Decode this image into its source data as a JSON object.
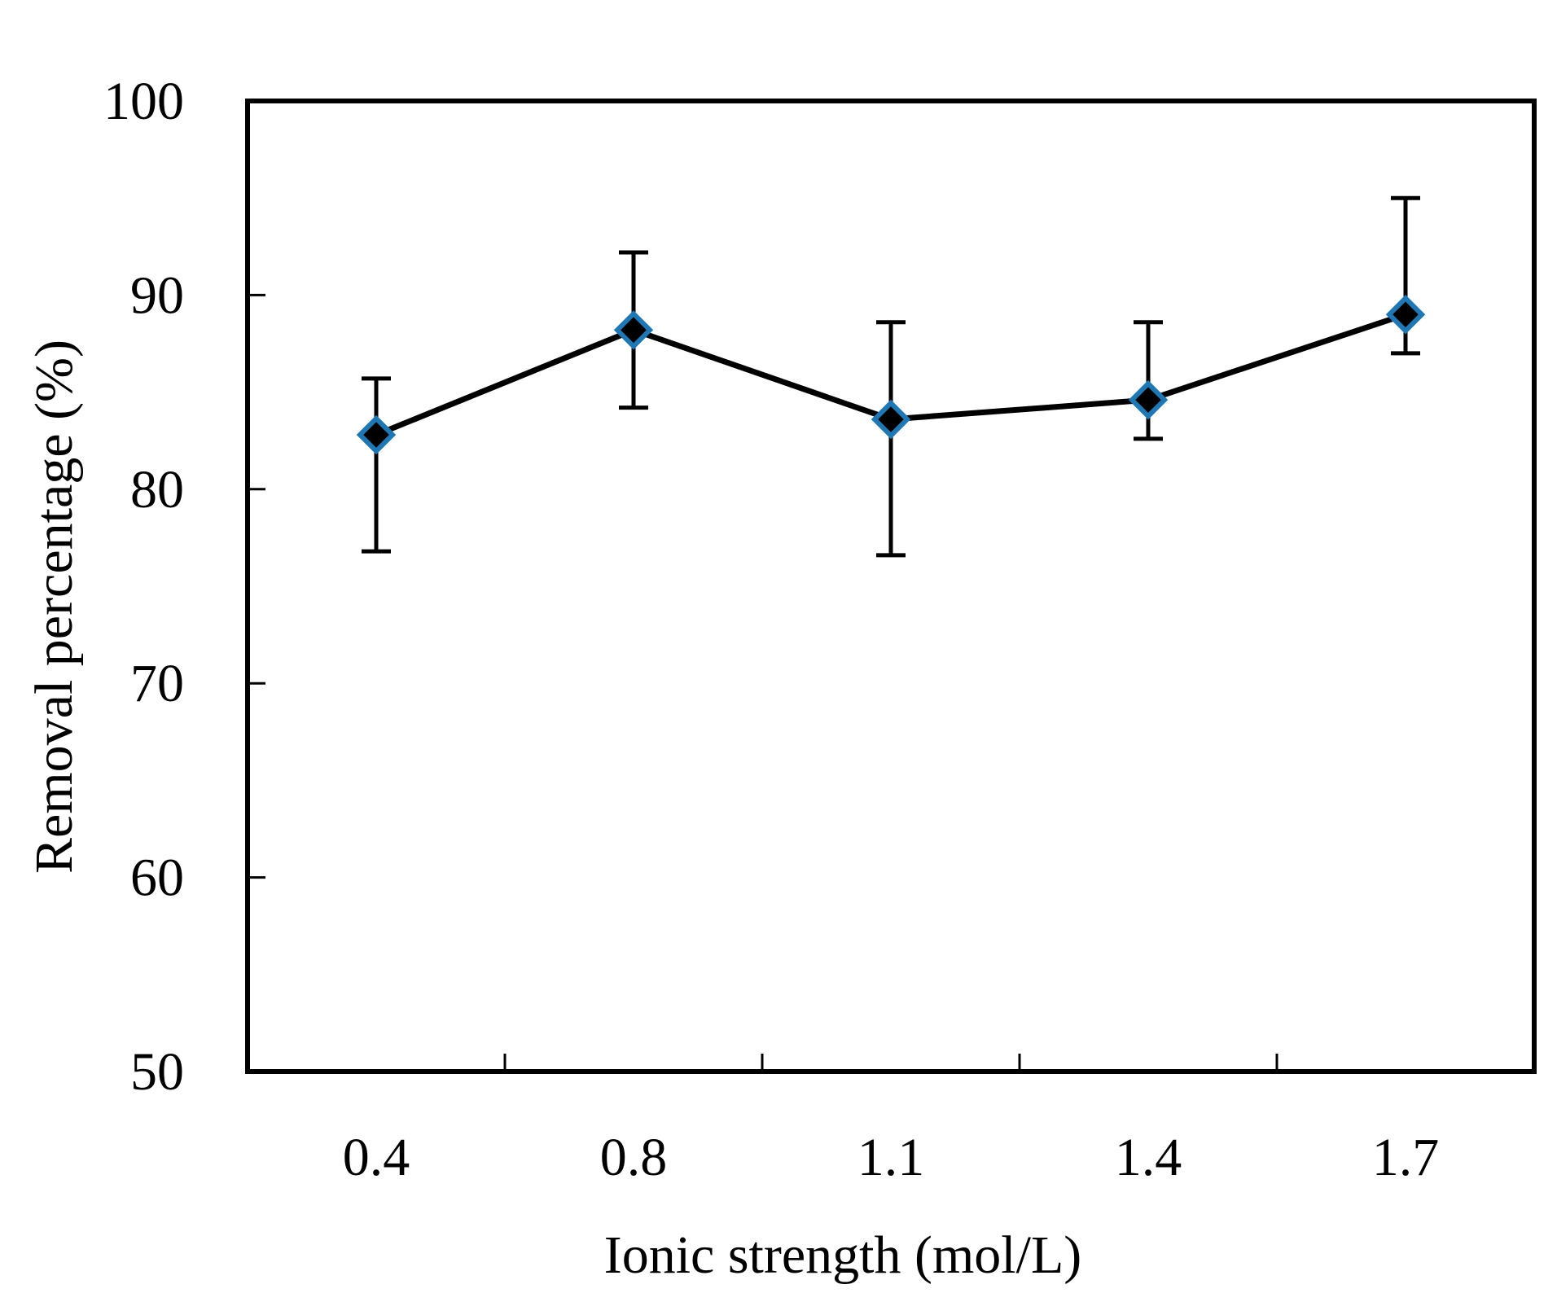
{
  "chart_data": {
    "type": "line",
    "title": "",
    "xlabel": "Ionic strength (mol/L)",
    "ylabel": "Removal percentage (%)",
    "categories": [
      "0.4",
      "0.8",
      "1.1",
      "1.4",
      "1.7"
    ],
    "ylim": [
      50,
      100
    ],
    "yticks": [
      50,
      60,
      70,
      80,
      90,
      100
    ],
    "grid": false,
    "legend": "none",
    "series": [
      {
        "name": "Removal percentage",
        "values": [
          82.8,
          88.2,
          83.6,
          84.6,
          89.0
        ],
        "error_upper": [
          85.7,
          92.2,
          88.6,
          88.6,
          95.0
        ],
        "error_lower": [
          76.8,
          84.2,
          76.6,
          82.6,
          87.0
        ],
        "line_color": "#000000",
        "marker": "diamond",
        "marker_fill": "#000000",
        "marker_edge": "#1f77b4"
      }
    ]
  }
}
